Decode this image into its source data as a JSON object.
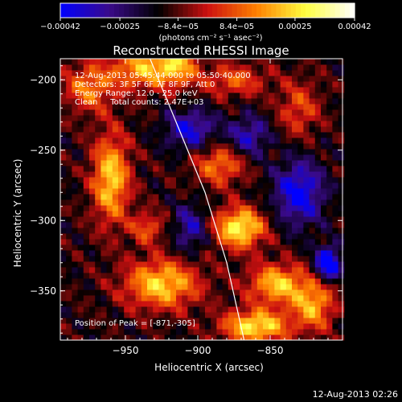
{
  "chart_data": {
    "type": "heatmap",
    "title": "Reconstructed RHESSI Image",
    "xlabel": "Heliocentric X (arcsec)",
    "ylabel": "Heliocentric Y (arcsec)",
    "xlim": [
      -995,
      -800
    ],
    "ylim": [
      -385,
      -185
    ],
    "xticks": [
      -950,
      -900,
      -850
    ],
    "yticks": [
      -200,
      -250,
      -300,
      -350
    ],
    "xtick_labels": [
      "−950",
      "−900",
      "−850"
    ],
    "ytick_labels": [
      "−200",
      "−250",
      "−300",
      "−350"
    ],
    "colorbar": {
      "min": -0.00042,
      "max": 0.00042,
      "tick_values": [
        -0.00042,
        -0.00025,
        -8.4e-05,
        8.4e-05,
        0.00025,
        0.00042
      ],
      "tick_labels": [
        "−0.00042",
        "−0.00025",
        "−8.4e−05",
        "8.4e−05",
        "0.00025",
        "0.00042"
      ],
      "unit_label": "(photons cm⁻² s⁻¹ asec⁻²)",
      "colormap": [
        "#0000ff",
        "#3a0a8a",
        "#000000",
        "#cc1010",
        "#ff8000",
        "#ffff40",
        "#ffffff"
      ]
    },
    "annotations": [
      "12-Aug-2013 05:45:44.000 to 05:50:40.000",
      "Detectors: 3F 5F 6F 7F 8F 9F, Att 0",
      "Energy Range: 12.0 - 25.0 keV",
      "Clean     Total counts: 2.47E+03"
    ],
    "peak_label": "Position of Peak = [-871,-305]",
    "peak": [
      -871,
      -305
    ],
    "limb_curve": [
      [
        -935,
        -180
      ],
      [
        -915,
        -230
      ],
      [
        -895,
        -280
      ],
      [
        -880,
        -330
      ],
      [
        -868,
        -385
      ]
    ],
    "sources": [
      {
        "x": -940,
        "y": -192,
        "amp": 0.0003,
        "sx": 14,
        "sy": 10
      },
      {
        "x": -915,
        "y": -190,
        "amp": 0.00032,
        "sx": 10,
        "sy": 10
      },
      {
        "x": -960,
        "y": -270,
        "amp": 0.00036,
        "sx": 9,
        "sy": 22
      },
      {
        "x": -975,
        "y": -205,
        "amp": 0.00025,
        "sx": 12,
        "sy": 12
      },
      {
        "x": -871,
        "y": -305,
        "amp": 0.00042,
        "sx": 12,
        "sy": 10
      },
      {
        "x": -885,
        "y": -260,
        "amp": 0.00025,
        "sx": 12,
        "sy": 10
      },
      {
        "x": -925,
        "y": -345,
        "amp": 0.00036,
        "sx": 18,
        "sy": 12
      },
      {
        "x": -845,
        "y": -345,
        "amp": 0.00034,
        "sx": 14,
        "sy": 10
      },
      {
        "x": -860,
        "y": -375,
        "amp": 0.0004,
        "sx": 16,
        "sy": 8
      },
      {
        "x": -820,
        "y": -360,
        "amp": 0.0003,
        "sx": 10,
        "sy": 12
      },
      {
        "x": -875,
        "y": -200,
        "amp": 0.0002,
        "sx": 16,
        "sy": 8
      },
      {
        "x": -830,
        "y": -220,
        "amp": 0.00018,
        "sx": 10,
        "sy": 14
      },
      {
        "x": -935,
        "y": -305,
        "amp": 0.0002,
        "sx": 8,
        "sy": 8
      },
      {
        "x": -830,
        "y": -280,
        "amp": -0.0003,
        "sx": 12,
        "sy": 16
      },
      {
        "x": -905,
        "y": -235,
        "amp": -0.00025,
        "sx": 12,
        "sy": 10
      },
      {
        "x": -905,
        "y": -305,
        "amp": -0.0002,
        "sx": 8,
        "sy": 12
      },
      {
        "x": -810,
        "y": -330,
        "amp": -0.0004,
        "sx": 6,
        "sy": 8
      },
      {
        "x": -865,
        "y": -240,
        "amp": -0.00022,
        "sx": 10,
        "sy": 10
      }
    ]
  },
  "footer": {
    "timestamp": "12-Aug-2013 02:26"
  }
}
